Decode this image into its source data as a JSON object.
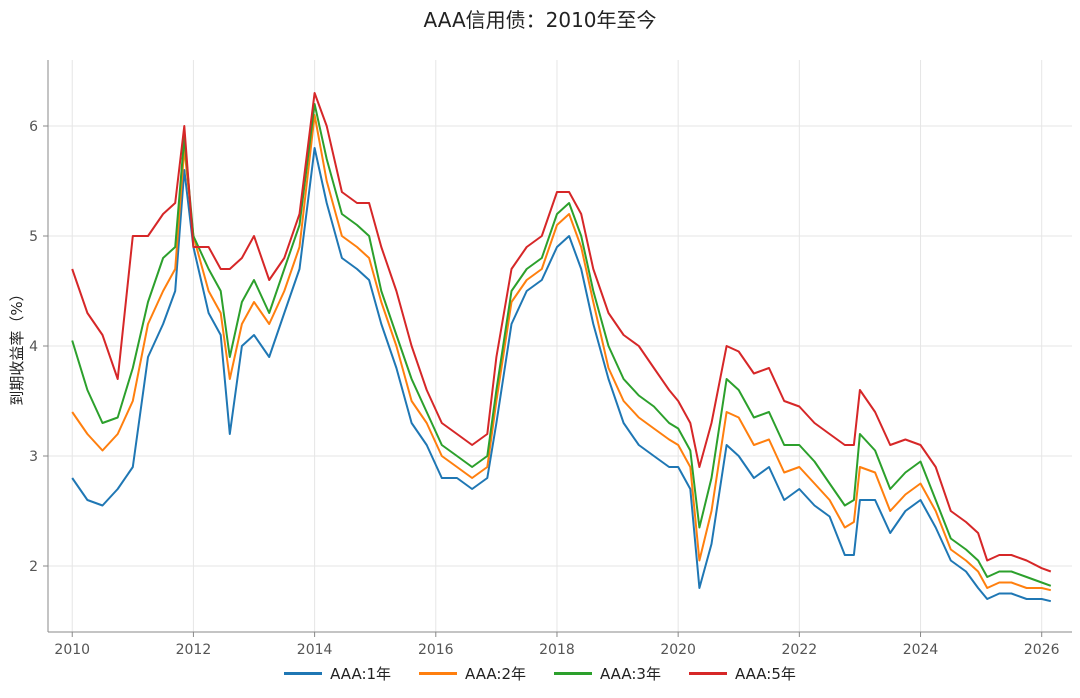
{
  "chart_data": {
    "type": "line",
    "title": "AAA信用债：2010年至今",
    "xlabel": "",
    "ylabel": "到期收益率（%）",
    "xlim": [
      2009.6,
      2026.5
    ],
    "ylim": [
      1.4,
      6.6
    ],
    "x_ticks": [
      2010,
      2012,
      2014,
      2016,
      2018,
      2020,
      2022,
      2024,
      2026
    ],
    "y_ticks": [
      2,
      3,
      4,
      5,
      6
    ],
    "grid": true,
    "legend_position": "bottom-center",
    "x": [
      2010.0,
      2010.25,
      2010.5,
      2010.75,
      2011.0,
      2011.25,
      2011.5,
      2011.7,
      2011.85,
      2012.0,
      2012.25,
      2012.45,
      2012.6,
      2012.8,
      2013.0,
      2013.25,
      2013.5,
      2013.75,
      2014.0,
      2014.2,
      2014.45,
      2014.7,
      2014.9,
      2015.1,
      2015.35,
      2015.6,
      2015.85,
      2016.1,
      2016.35,
      2016.6,
      2016.85,
      2017.0,
      2017.25,
      2017.5,
      2017.75,
      2018.0,
      2018.2,
      2018.4,
      2018.6,
      2018.85,
      2019.1,
      2019.35,
      2019.6,
      2019.85,
      2020.0,
      2020.2,
      2020.35,
      2020.55,
      2020.8,
      2021.0,
      2021.25,
      2021.5,
      2021.75,
      2022.0,
      2022.25,
      2022.5,
      2022.75,
      2022.9,
      2023.0,
      2023.25,
      2023.5,
      2023.75,
      2024.0,
      2024.25,
      2024.5,
      2024.75,
      2024.95,
      2025.1,
      2025.3,
      2025.5,
      2025.75,
      2026.0,
      2026.15
    ],
    "series": [
      {
        "name": "AAA:1年",
        "color": "#1f77b4",
        "values": [
          2.8,
          2.6,
          2.55,
          2.7,
          2.9,
          3.9,
          4.2,
          4.5,
          5.6,
          4.9,
          4.3,
          4.1,
          3.2,
          4.0,
          4.1,
          3.9,
          4.3,
          4.7,
          5.8,
          5.3,
          4.8,
          4.7,
          4.6,
          4.2,
          3.8,
          3.3,
          3.1,
          2.8,
          2.8,
          2.7,
          2.8,
          3.3,
          4.2,
          4.5,
          4.6,
          4.9,
          5.0,
          4.7,
          4.2,
          3.7,
          3.3,
          3.1,
          3.0,
          2.9,
          2.9,
          2.7,
          1.8,
          2.2,
          3.1,
          3.0,
          2.8,
          2.9,
          2.6,
          2.7,
          2.55,
          2.45,
          2.1,
          2.1,
          2.6,
          2.6,
          2.3,
          2.5,
          2.6,
          2.35,
          2.05,
          1.95,
          1.8,
          1.7,
          1.75,
          1.75,
          1.7,
          1.7,
          1.68
        ]
      },
      {
        "name": "AAA:2年",
        "color": "#ff7f0e",
        "values": [
          3.4,
          3.2,
          3.05,
          3.2,
          3.5,
          4.2,
          4.5,
          4.7,
          5.8,
          5.0,
          4.5,
          4.3,
          3.7,
          4.2,
          4.4,
          4.2,
          4.5,
          4.9,
          6.1,
          5.5,
          5.0,
          4.9,
          4.8,
          4.4,
          4.0,
          3.5,
          3.3,
          3.0,
          2.9,
          2.8,
          2.9,
          3.5,
          4.4,
          4.6,
          4.7,
          5.1,
          5.2,
          4.9,
          4.4,
          3.8,
          3.5,
          3.35,
          3.25,
          3.15,
          3.1,
          2.9,
          2.05,
          2.5,
          3.4,
          3.35,
          3.1,
          3.15,
          2.85,
          2.9,
          2.75,
          2.6,
          2.35,
          2.4,
          2.9,
          2.85,
          2.5,
          2.65,
          2.75,
          2.5,
          2.15,
          2.05,
          1.95,
          1.8,
          1.85,
          1.85,
          1.8,
          1.8,
          1.78
        ]
      },
      {
        "name": "AAA:3年",
        "color": "#2ca02c",
        "values": [
          4.05,
          3.6,
          3.3,
          3.35,
          3.8,
          4.4,
          4.8,
          4.9,
          5.9,
          5.0,
          4.7,
          4.5,
          3.9,
          4.4,
          4.6,
          4.3,
          4.7,
          5.1,
          6.2,
          5.7,
          5.2,
          5.1,
          5.0,
          4.5,
          4.1,
          3.7,
          3.4,
          3.1,
          3.0,
          2.9,
          3.0,
          3.6,
          4.5,
          4.7,
          4.8,
          5.2,
          5.3,
          5.0,
          4.5,
          4.0,
          3.7,
          3.55,
          3.45,
          3.3,
          3.25,
          3.05,
          2.35,
          2.8,
          3.7,
          3.6,
          3.35,
          3.4,
          3.1,
          3.1,
          2.95,
          2.75,
          2.55,
          2.6,
          3.2,
          3.05,
          2.7,
          2.85,
          2.95,
          2.6,
          2.25,
          2.15,
          2.05,
          1.9,
          1.95,
          1.95,
          1.9,
          1.85,
          1.82
        ]
      },
      {
        "name": "AAA:5年",
        "color": "#d62728",
        "values": [
          4.7,
          4.3,
          4.1,
          3.7,
          5.0,
          5.0,
          5.2,
          5.3,
          6.0,
          4.9,
          4.9,
          4.7,
          4.7,
          4.8,
          5.0,
          4.6,
          4.8,
          5.2,
          6.3,
          6.0,
          5.4,
          5.3,
          5.3,
          4.9,
          4.5,
          4.0,
          3.6,
          3.3,
          3.2,
          3.1,
          3.2,
          3.9,
          4.7,
          4.9,
          5.0,
          5.4,
          5.4,
          5.2,
          4.7,
          4.3,
          4.1,
          4.0,
          3.8,
          3.6,
          3.5,
          3.3,
          2.9,
          3.3,
          4.0,
          3.95,
          3.75,
          3.8,
          3.5,
          3.45,
          3.3,
          3.2,
          3.1,
          3.1,
          3.6,
          3.4,
          3.1,
          3.15,
          3.1,
          2.9,
          2.5,
          2.4,
          2.3,
          2.05,
          2.1,
          2.1,
          2.05,
          1.98,
          1.95
        ]
      }
    ]
  }
}
